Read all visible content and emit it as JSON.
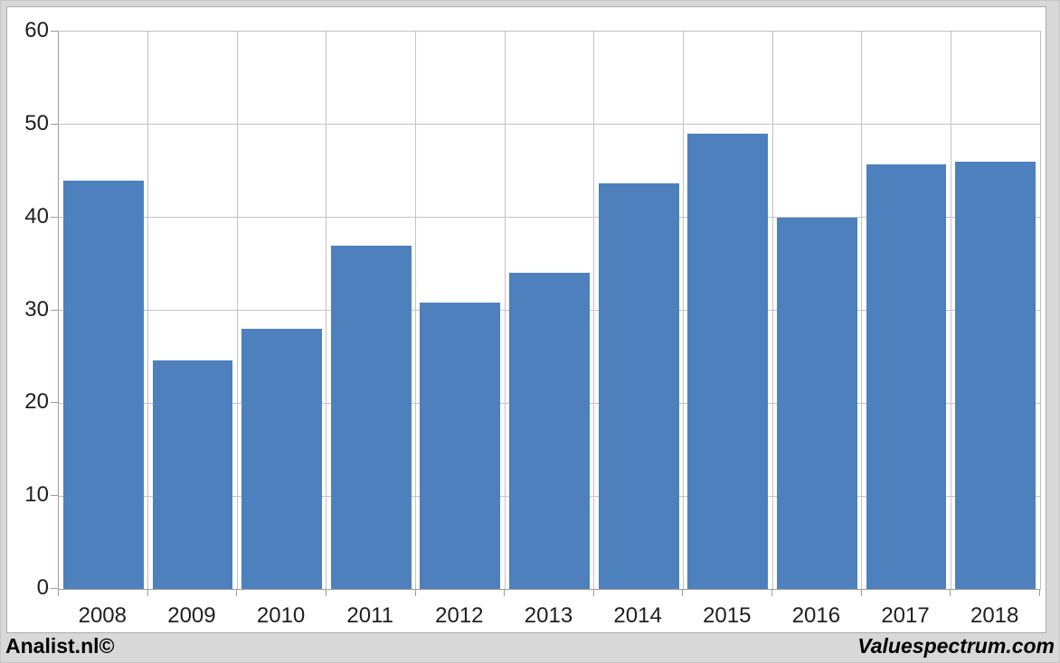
{
  "chart_data": {
    "type": "bar",
    "title": "",
    "xlabel": "",
    "ylabel": "",
    "categories": [
      "2008",
      "2009",
      "2010",
      "2011",
      "2012",
      "2013",
      "2014",
      "2015",
      "2016",
      "2017",
      "2018"
    ],
    "values": [
      44,
      24.6,
      28,
      37,
      30.8,
      34,
      43.7,
      49,
      40,
      45.7,
      46
    ],
    "ylim": [
      0,
      60
    ],
    "yticks": [
      0,
      10,
      20,
      30,
      40,
      50,
      60
    ],
    "grid": "horizontal and vertical major gridlines",
    "legend": "none",
    "bar_color": "#4e80bd",
    "gap_fraction": 0.1
  },
  "footer": {
    "left": "Analist.nl©",
    "right": "Valuespectrum.com"
  },
  "colors": {
    "page_bg": "#d8d8d8",
    "panel_bg": "#ffffff",
    "panel_border": "#ababab",
    "gridline": "#c3c3c3",
    "axis_line": "#9d9d9d",
    "label_text": "#1f1f1f",
    "footer_text": "#000000"
  }
}
